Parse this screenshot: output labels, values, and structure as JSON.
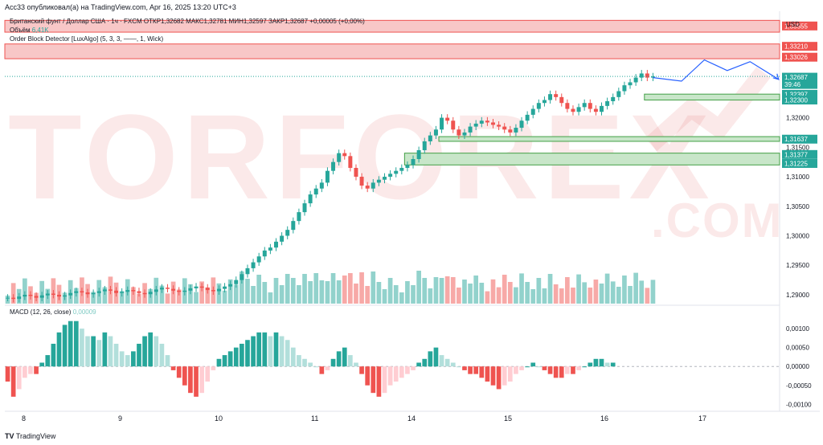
{
  "header": {
    "publisher": "Acc33 опубликовал(а) на TradingView.com, Apr 16, 2025 13:20 UTC+3"
  },
  "legend": {
    "symbol_line": "Британский фунт / Доллар США · 1ч · FXCM  ОТКР1,32682  МАКС1,32781  МИН1,32597  ЗАКР1,32687  +0,00005 (+0,00%)",
    "volume_label": "Объём",
    "volume_value": "6,41K",
    "indicator": "Order Block Detector [LuxAlgo] (5, 3, 3, ——, 1, Wick)",
    "macd_label": "MACD (12, 26, close)",
    "macd_value": "0,00009"
  },
  "watermark": {
    "main": "TORFOREX",
    "sub": ".COM"
  },
  "footer": {
    "brand": "TradingView"
  },
  "colors": {
    "up": "#26a69a",
    "down": "#ef5350",
    "red_zone": "#f8c7c7",
    "green_zone": "#c8e6c9",
    "arrow": "#2962ff"
  },
  "chart_data": {
    "type": "candlestick",
    "currency": "USD",
    "x_ticks": [
      "8",
      "9",
      "10",
      "11",
      "14",
      "15",
      "16",
      "17"
    ],
    "price_ticks": [
      "1,32000",
      "1,31500",
      "1,31000",
      "1,30500",
      "1,30000",
      "1,29500",
      "1,29000"
    ],
    "ylim": [
      1.2885,
      1.3375
    ],
    "price_tags": [
      {
        "label": "1,33555",
        "value": 1.33555,
        "color": "#ef5350"
      },
      {
        "label": "1,33210",
        "value": 1.3321,
        "color": "#ef5350"
      },
      {
        "label": "1,33026",
        "value": 1.33026,
        "color": "#ef5350"
      },
      {
        "label": "1,32687",
        "value": 1.32687,
        "color": "#26a69a",
        "extra": "39:46"
      },
      {
        "label": "1,32397",
        "value": 1.32397,
        "color": "#26a69a"
      },
      {
        "label": "1,32300",
        "value": 1.323,
        "color": "#26a69a"
      },
      {
        "label": "1,31637",
        "value": 1.31637,
        "color": "#26a69a"
      },
      {
        "label": "1,31377",
        "value": 1.31377,
        "color": "#26a69a"
      },
      {
        "label": "1,31225",
        "value": 1.31225,
        "color": "#26a69a"
      }
    ],
    "order_blocks": [
      {
        "type": "bearish",
        "top": 1.3365,
        "bottom": 1.3345
      },
      {
        "type": "bearish",
        "top": 1.3325,
        "bottom": 1.33
      },
      {
        "type": "bullish",
        "top": 1.324,
        "bottom": 1.323,
        "start_index": 112
      },
      {
        "type": "bullish",
        "top": 1.3168,
        "bottom": 1.316,
        "start_index": 76
      },
      {
        "type": "bullish",
        "top": 1.314,
        "bottom": 1.312,
        "start_index": 70
      }
    ],
    "close_series": [
      1.2895,
      1.2893,
      1.2897,
      1.29,
      1.2898,
      1.2895,
      1.2899,
      1.2902,
      1.29,
      1.2897,
      1.2899,
      1.2903,
      1.2906,
      1.2904,
      1.2901,
      1.2903,
      1.2906,
      1.2909,
      1.2907,
      1.2903,
      1.2905,
      1.2908,
      1.2906,
      1.2903,
      1.2901,
      1.2905,
      1.2909,
      1.2912,
      1.291,
      1.2907,
      1.2905,
      1.2907,
      1.2911,
      1.2914,
      1.2912,
      1.2908,
      1.2906,
      1.291,
      1.2914,
      1.2918,
      1.2925,
      1.2935,
      1.2945,
      1.2955,
      1.2965,
      1.2975,
      1.298,
      1.299,
      1.3,
      1.301,
      1.3025,
      1.304,
      1.3055,
      1.307,
      1.308,
      1.309,
      1.311,
      1.3125,
      1.314,
      1.3135,
      1.3115,
      1.31,
      1.3085,
      1.308,
      1.309,
      1.3095,
      1.31,
      1.3105,
      1.311,
      1.3115,
      1.312,
      1.313,
      1.3145,
      1.316,
      1.317,
      1.318,
      1.32,
      1.3195,
      1.318,
      1.317,
      1.3175,
      1.3185,
      1.319,
      1.3195,
      1.3192,
      1.3188,
      1.3185,
      1.318,
      1.3175,
      1.3183,
      1.3195,
      1.3205,
      1.3215,
      1.3225,
      1.323,
      1.324,
      1.3235,
      1.3225,
      1.3215,
      1.321,
      1.3218,
      1.3225,
      1.3215,
      1.321,
      1.322,
      1.3228,
      1.3235,
      1.3245,
      1.3255,
      1.326,
      1.3268,
      1.3275,
      1.3268,
      1.327
    ],
    "projection": [
      [
        1.3268,
        0
      ],
      [
        1.3262,
        5
      ],
      [
        1.3298,
        9
      ],
      [
        1.328,
        13
      ],
      [
        1.3295,
        17
      ],
      [
        1.3265,
        22
      ]
    ],
    "macd": {
      "ylim": [
        -0.0011,
        0.0013
      ],
      "ticks": [
        "0,00100",
        "0,00050",
        "0,00000",
        "-0,00050",
        "-0,00100"
      ],
      "hist": [
        -0.0004,
        -0.0008,
        -0.0006,
        -0.0003,
        -0.0002,
        -0.0002,
        0.0001,
        0.0003,
        0.0006,
        0.0009,
        0.0011,
        0.0012,
        0.0012,
        0.001,
        0.0008,
        0.0008,
        0.0007,
        0.0009,
        0.0008,
        0.0006,
        0.0004,
        0.0003,
        0.0004,
        0.0006,
        0.0008,
        0.0009,
        0.0008,
        0.0006,
        0.0003,
        -0.0001,
        -0.0003,
        -0.0005,
        -0.0007,
        -0.0008,
        -0.0007,
        -0.0004,
        -0.0001,
        0.0002,
        0.0003,
        0.0004,
        0.0005,
        0.0006,
        0.0007,
        0.0008,
        0.0009,
        0.0009,
        0.0008,
        0.0009,
        0.0008,
        0.0007,
        0.0005,
        0.0003,
        0.0002,
        0.0001,
        0.0,
        -0.0002,
        -0.0001,
        0.0002,
        0.0004,
        0.0005,
        0.0003,
        0.0001,
        -0.0002,
        -0.0005,
        -0.0007,
        -0.0008,
        -0.0007,
        -0.0005,
        -0.0004,
        -0.0003,
        -0.0002,
        -0.0001,
        0.0001,
        0.0002,
        0.0004,
        0.0005,
        0.0003,
        0.0002,
        0.0001,
        0.0,
        -0.0001,
        -0.0002,
        -0.0002,
        -0.0003,
        -0.0004,
        -0.0005,
        -0.0006,
        -0.0005,
        -0.0004,
        -0.0002,
        -0.0001,
        0.0,
        0.0001,
        0.0,
        -0.0001,
        -0.0002,
        -0.0003,
        -0.0003,
        -0.0002,
        -0.0002,
        -0.0001,
        0.0,
        0.0001,
        0.0002,
        0.0002,
        0.0001,
        0.0001
      ]
    }
  }
}
